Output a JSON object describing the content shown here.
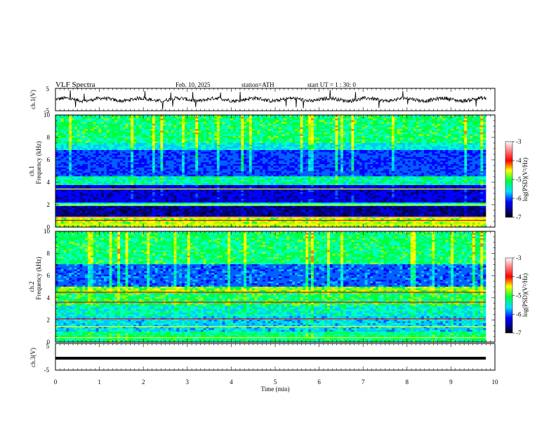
{
  "header": {
    "title": "VLF  Spectra",
    "date": "Feb. 10, 2025",
    "station": "station=ATH",
    "start": "start  UT  =   1 : 30: 0"
  },
  "chart_data": [
    {
      "type": "line",
      "ylabel": "ch.1(V)",
      "ylim": [
        -5,
        5
      ],
      "yticks": [
        "5",
        "-5"
      ],
      "baseline": 0,
      "series": [
        {
          "values": []
        }
      ]
    },
    {
      "type": "heatmap",
      "ylabel_line1": "ch.1",
      "ylabel_line2": "Frequency  (kHz)",
      "ylim": [
        0,
        10
      ],
      "yticks": [
        "0",
        "2",
        "4",
        "6",
        "8",
        "10"
      ],
      "colorbar": {
        "label": "log(PSD)(V²/Hz)",
        "range": [
          -7,
          -3
        ],
        "ticks": [
          "-3",
          "-4",
          "-5",
          "-6",
          "-7"
        ]
      }
    },
    {
      "type": "heatmap",
      "ylabel_line1": "ch.2",
      "ylabel_line2": "Frequency  (kHz)",
      "ylim": [
        0,
        10
      ],
      "yticks": [
        "0",
        "2",
        "4",
        "6",
        "8",
        "10"
      ],
      "colorbar": {
        "label": "log(PSD)(V²/Hz)",
        "range": [
          -7,
          -3
        ],
        "ticks": [
          "-3",
          "-4",
          "-5",
          "-6",
          "-7"
        ]
      }
    },
    {
      "type": "line",
      "ylabel": "ch.3(V)",
      "ylim": [
        -5,
        5
      ],
      "yticks": [
        "5",
        "-5"
      ],
      "baseline": -1.8
    }
  ],
  "xaxis": {
    "label": "Time  (min)",
    "xlim": [
      0,
      10
    ],
    "ticks": [
      "0",
      "1",
      "2",
      "3",
      "4",
      "5",
      "6",
      "7",
      "8",
      "9",
      "10"
    ]
  },
  "colors": {
    "dark_blue": "#000080",
    "blue": "#0000ff",
    "cyan": "#00c8ff",
    "green": "#00ff40",
    "yellow": "#ffff00",
    "red": "#ff0000",
    "white": "#ffffff"
  }
}
